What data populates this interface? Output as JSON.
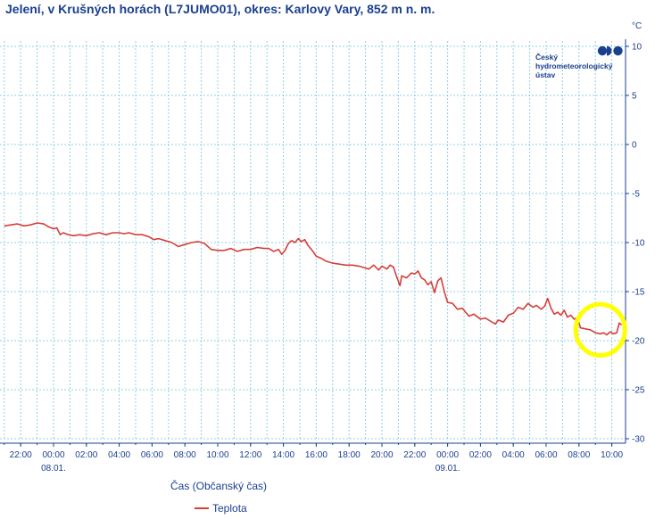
{
  "chart_data": {
    "type": "line",
    "title": "Jelení, v Krušných horách (L7JUMO01), okres: Karlovy Vary, 852 m n. m.",
    "xlabel": "Čas (Občanský čas)",
    "y_unit": "°C",
    "ylim": [
      -30,
      10
    ],
    "xlim": [
      -3,
      33
    ],
    "y_ticks": [
      10,
      5,
      0,
      -5,
      -10,
      -15,
      -20,
      -25,
      -30
    ],
    "x_ticks": [
      {
        "x": -2,
        "label": "22:00"
      },
      {
        "x": 0,
        "label": "00:00"
      },
      {
        "x": 2,
        "label": "02:00"
      },
      {
        "x": 4,
        "label": "04:00"
      },
      {
        "x": 6,
        "label": "06:00"
      },
      {
        "x": 8,
        "label": "08:00"
      },
      {
        "x": 10,
        "label": "10:00"
      },
      {
        "x": 12,
        "label": "12:00"
      },
      {
        "x": 14,
        "label": "14:00"
      },
      {
        "x": 16,
        "label": "16:00"
      },
      {
        "x": 18,
        "label": "18:00"
      },
      {
        "x": 20,
        "label": "20:00"
      },
      {
        "x": 22,
        "label": "22:00"
      },
      {
        "x": 24,
        "label": "00:00"
      },
      {
        "x": 26,
        "label": "02:00"
      },
      {
        "x": 28,
        "label": "04:00"
      },
      {
        "x": 30,
        "label": "06:00"
      },
      {
        "x": 32,
        "label": "08:00"
      },
      {
        "x": 34,
        "label": "10:00"
      }
    ],
    "date_labels": [
      {
        "x": 0,
        "label": "08.01."
      },
      {
        "x": 24,
        "label": "09.01."
      }
    ],
    "grid": true,
    "legend_position": "bottom-center",
    "series": [
      {
        "name": "Teplota",
        "color": "#d43f3a",
        "points": [
          [
            -3.0,
            -8.3
          ],
          [
            -2.6,
            -8.2
          ],
          [
            -2.2,
            -8.1
          ],
          [
            -1.8,
            -8.3
          ],
          [
            -1.4,
            -8.2
          ],
          [
            -1.0,
            -8.0
          ],
          [
            -0.6,
            -8.1
          ],
          [
            -0.3,
            -8.4
          ],
          [
            0.0,
            -8.6
          ],
          [
            0.2,
            -8.5
          ],
          [
            0.4,
            -9.2
          ],
          [
            0.6,
            -9.0
          ],
          [
            0.9,
            -9.2
          ],
          [
            1.2,
            -9.3
          ],
          [
            1.6,
            -9.2
          ],
          [
            2.0,
            -9.3
          ],
          [
            2.4,
            -9.1
          ],
          [
            2.8,
            -9.0
          ],
          [
            3.2,
            -9.2
          ],
          [
            3.6,
            -9.0
          ],
          [
            4.0,
            -9.0
          ],
          [
            4.3,
            -9.1
          ],
          [
            4.6,
            -9.0
          ],
          [
            5.0,
            -9.2
          ],
          [
            5.4,
            -9.2
          ],
          [
            5.8,
            -9.4
          ],
          [
            6.1,
            -9.7
          ],
          [
            6.4,
            -9.6
          ],
          [
            6.8,
            -9.8
          ],
          [
            7.2,
            -10.0
          ],
          [
            7.6,
            -10.4
          ],
          [
            8.0,
            -10.2
          ],
          [
            8.4,
            -10.0
          ],
          [
            8.8,
            -9.9
          ],
          [
            9.2,
            -10.1
          ],
          [
            9.6,
            -10.7
          ],
          [
            10.0,
            -10.8
          ],
          [
            10.4,
            -10.8
          ],
          [
            10.8,
            -10.6
          ],
          [
            11.2,
            -10.9
          ],
          [
            11.6,
            -10.7
          ],
          [
            12.0,
            -10.7
          ],
          [
            12.4,
            -10.5
          ],
          [
            12.8,
            -10.6
          ],
          [
            13.1,
            -10.6
          ],
          [
            13.4,
            -10.9
          ],
          [
            13.7,
            -10.7
          ],
          [
            13.9,
            -11.2
          ],
          [
            14.1,
            -10.8
          ],
          [
            14.3,
            -10.1
          ],
          [
            14.5,
            -9.8
          ],
          [
            14.7,
            -10.0
          ],
          [
            14.9,
            -9.6
          ],
          [
            15.1,
            -9.9
          ],
          [
            15.3,
            -9.7
          ],
          [
            15.5,
            -10.3
          ],
          [
            15.8,
            -10.9
          ],
          [
            16.0,
            -11.4
          ],
          [
            16.3,
            -11.6
          ],
          [
            16.6,
            -11.9
          ],
          [
            17.0,
            -12.1
          ],
          [
            17.4,
            -12.2
          ],
          [
            17.8,
            -12.3
          ],
          [
            18.2,
            -12.3
          ],
          [
            18.6,
            -12.4
          ],
          [
            19.0,
            -12.6
          ],
          [
            19.2,
            -12.7
          ],
          [
            19.5,
            -12.3
          ],
          [
            19.8,
            -12.8
          ],
          [
            20.0,
            -12.4
          ],
          [
            20.3,
            -12.7
          ],
          [
            20.5,
            -12.3
          ],
          [
            20.7,
            -12.5
          ],
          [
            20.9,
            -13.5
          ],
          [
            21.1,
            -14.4
          ],
          [
            21.2,
            -13.4
          ],
          [
            21.5,
            -13.6
          ],
          [
            21.8,
            -13.1
          ],
          [
            22.0,
            -13.2
          ],
          [
            22.2,
            -12.9
          ],
          [
            22.4,
            -13.6
          ],
          [
            22.6,
            -13.8
          ],
          [
            22.8,
            -14.3
          ],
          [
            23.0,
            -14.0
          ],
          [
            23.2,
            -15.1
          ],
          [
            23.4,
            -13.9
          ],
          [
            23.6,
            -13.6
          ],
          [
            23.8,
            -15.0
          ],
          [
            24.0,
            -16.1
          ],
          [
            24.3,
            -16.2
          ],
          [
            24.6,
            -16.8
          ],
          [
            24.9,
            -16.7
          ],
          [
            25.1,
            -17.1
          ],
          [
            25.3,
            -17.5
          ],
          [
            25.6,
            -17.3
          ],
          [
            26.0,
            -17.8
          ],
          [
            26.3,
            -17.7
          ],
          [
            26.6,
            -18.0
          ],
          [
            26.9,
            -18.3
          ],
          [
            27.1,
            -17.9
          ],
          [
            27.4,
            -18.1
          ],
          [
            27.7,
            -17.4
          ],
          [
            28.0,
            -17.2
          ],
          [
            28.3,
            -16.6
          ],
          [
            28.6,
            -16.8
          ],
          [
            28.9,
            -16.2
          ],
          [
            29.2,
            -16.6
          ],
          [
            29.4,
            -16.4
          ],
          [
            29.7,
            -16.8
          ],
          [
            29.9,
            -16.5
          ],
          [
            30.1,
            -15.7
          ],
          [
            30.3,
            -16.7
          ],
          [
            30.5,
            -17.3
          ],
          [
            30.7,
            -17.1
          ],
          [
            30.9,
            -17.4
          ],
          [
            31.1,
            -16.9
          ],
          [
            31.3,
            -17.6
          ],
          [
            31.5,
            -17.4
          ],
          [
            31.7,
            -17.8
          ],
          [
            31.9,
            -17.7
          ],
          [
            32.1,
            -18.7
          ],
          [
            32.4,
            -18.8
          ],
          [
            32.7,
            -18.9
          ],
          [
            33.0,
            -19.2
          ],
          [
            33.3,
            -19.3
          ],
          [
            33.5,
            -19.2
          ],
          [
            33.7,
            -19.4
          ],
          [
            33.9,
            -19.1
          ],
          [
            34.1,
            -19.3
          ],
          [
            34.3,
            -19.2
          ],
          [
            34.45,
            -18.2
          ],
          [
            34.6,
            -18.4
          ]
        ]
      }
    ],
    "annotations": [
      {
        "type": "ellipse",
        "color": "#ffff00",
        "cx": 33.3,
        "cy": -18.9,
        "rx": 1.5,
        "ry": 2.6
      }
    ],
    "logo": {
      "lines": [
        "Český",
        "hydrometeorologický",
        "ústav"
      ],
      "color": "#1b3f8f"
    }
  }
}
